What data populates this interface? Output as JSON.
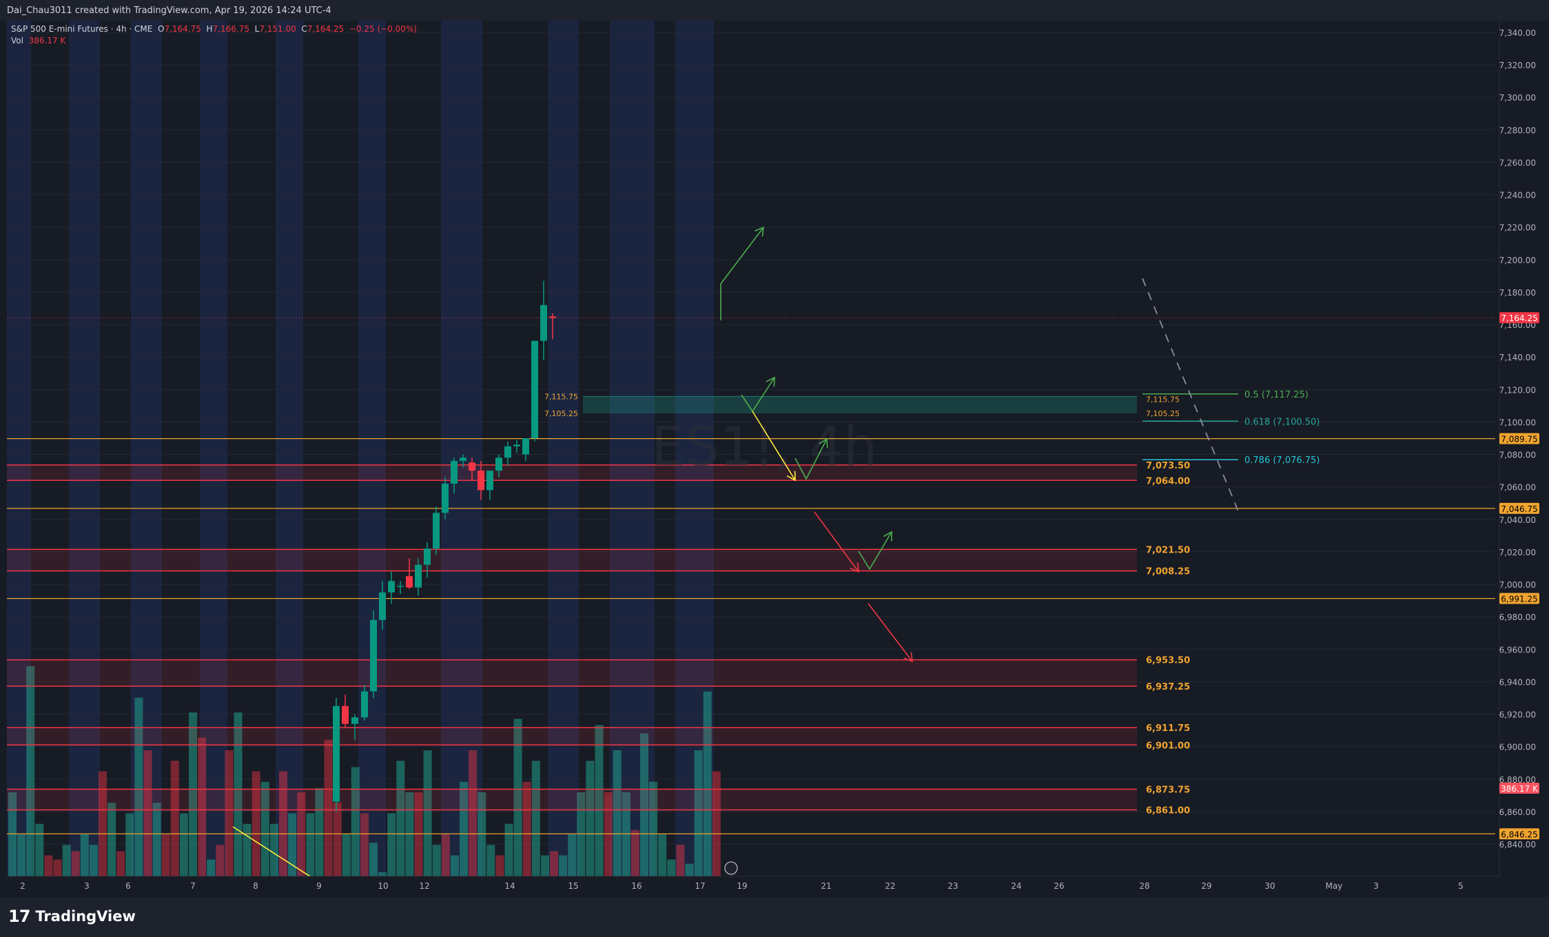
{
  "header": {
    "created": "Dai_Chau3011 created with TradingView.com, Apr 19, 2026 14:24 UTC-4"
  },
  "legend": {
    "symbol": "S&P 500 E-mini Futures · 4h · CME",
    "o_label": "O",
    "o": "7,164.75",
    "h_label": "H",
    "h": "7,166.75",
    "l_label": "L",
    "l": "7,151.00",
    "c_label": "C",
    "c": "7,164.25",
    "change": "−0.25 (−0.00%)",
    "vol_label": "Vol",
    "vol": "386.17 K"
  },
  "watermark": "ES1!, 4h",
  "footer": {
    "brand": "TradingView"
  },
  "colors": {
    "background": "#171b24",
    "session_band": "#1d2a4a",
    "up": "#089981",
    "down": "#f23645",
    "level_line": "#f0a430",
    "zone_red": "#f23645",
    "zone_green": "#22ab94",
    "fib_05": "#4caf50",
    "fib_0618": "#26a69a",
    "fib_0786": "#26c6da",
    "arrow_green": "#4caf50",
    "arrow_red": "#f23645",
    "arrow_yellow": "#ffeb3b"
  },
  "chart_data": {
    "type": "candlestick",
    "y_axis_labels": [
      "7,340.00",
      "7,320.00",
      "7,300.00",
      "7,280.00",
      "7,260.00",
      "7,240.00",
      "7,220.00",
      "7,200.00",
      "7,180.00",
      "7,160.00",
      "7,140.00",
      "7,120.00",
      "7,100.00",
      "7,080.00",
      "7,060.00",
      "7,040.00",
      "7,020.00",
      "7,000.00",
      "6,980.00",
      "6,960.00",
      "6,940.00",
      "6,920.00",
      "6,900.00",
      "6,880.00",
      "6,860.00",
      "6,840.00"
    ],
    "ylim": [
      6836,
      7344
    ],
    "x_axis_labels": [
      "2",
      "3",
      "6",
      "7",
      "8",
      "9",
      "10",
      "12",
      "14",
      "15",
      "16",
      "17",
      "19",
      "21",
      "22",
      "23",
      "24",
      "26",
      "28",
      "29",
      "30",
      "May",
      "3",
      "5"
    ],
    "last_price": "7,164.25",
    "volume_label": "386.17 K",
    "candles": [
      [
        6866,
        6930,
        6860,
        6925
      ],
      [
        6925,
        6932,
        6912,
        6914
      ],
      [
        6914,
        6920,
        6904,
        6918
      ],
      [
        6918,
        6938,
        6916,
        6934
      ],
      [
        6934,
        6984,
        6930,
        6978
      ],
      [
        6978,
        7002,
        6972,
        6995
      ],
      [
        6995,
        7008,
        6988,
        7002
      ],
      [
        6999,
        7002,
        6994,
        6999
      ],
      [
        7005,
        7016,
        6997,
        6998
      ],
      [
        6998,
        7016,
        6993,
        7012
      ],
      [
        7012,
        7026,
        7004,
        7022
      ],
      [
        7022,
        7048,
        7018,
        7044
      ],
      [
        7044,
        7066,
        7040,
        7062
      ],
      [
        7062,
        7078,
        7056,
        7076
      ],
      [
        7076,
        7080,
        7072,
        7078
      ],
      [
        7075,
        7078,
        7064,
        7070
      ],
      [
        7070,
        7076,
        7052,
        7058
      ],
      [
        7058,
        7070,
        7052,
        7070
      ],
      [
        7070,
        7080,
        7066,
        7078
      ],
      [
        7078,
        7088,
        7073,
        7085
      ],
      [
        7085,
        7089,
        7081,
        7086
      ],
      [
        7080,
        7090,
        7076,
        7090
      ],
      [
        7090,
        7150,
        7088,
        7150
      ],
      [
        7150,
        7187,
        7138,
        7172
      ],
      [
        7165,
        7167,
        7151,
        7164
      ]
    ],
    "candle_x": [
      483,
      496,
      510,
      524,
      537,
      550,
      563,
      576,
      589,
      602,
      615,
      628,
      641,
      654,
      667,
      680,
      693,
      706,
      719,
      732,
      745,
      758,
      771,
      784,
      797
    ],
    "volumes": [
      {
        "v": 0.4,
        "d": 0
      },
      {
        "v": 0.2,
        "d": 0
      },
      {
        "v": 1.0,
        "d": 0
      },
      {
        "v": 0.25,
        "d": 0
      },
      {
        "v": 0.1,
        "d": 1
      },
      {
        "v": 0.08,
        "d": 1
      },
      {
        "v": 0.15,
        "d": 0
      },
      {
        "v": 0.12,
        "d": 1
      },
      {
        "v": 0.2,
        "d": 0
      },
      {
        "v": 0.15,
        "d": 0
      },
      {
        "v": 0.5,
        "d": 1
      },
      {
        "v": 0.35,
        "d": 0
      },
      {
        "v": 0.12,
        "d": 1
      },
      {
        "v": 0.3,
        "d": 0
      },
      {
        "v": 0.85,
        "d": 0
      },
      {
        "v": 0.6,
        "d": 1
      },
      {
        "v": 0.35,
        "d": 0
      },
      {
        "v": 0.2,
        "d": 1
      },
      {
        "v": 0.55,
        "d": 1
      },
      {
        "v": 0.3,
        "d": 0
      },
      {
        "v": 0.78,
        "d": 0
      },
      {
        "v": 0.66,
        "d": 1
      },
      {
        "v": 0.08,
        "d": 0
      },
      {
        "v": 0.15,
        "d": 1
      },
      {
        "v": 0.6,
        "d": 1
      },
      {
        "v": 0.78,
        "d": 0
      },
      {
        "v": 0.25,
        "d": 0
      },
      {
        "v": 0.5,
        "d": 1
      },
      {
        "v": 0.45,
        "d": 0
      },
      {
        "v": 0.25,
        "d": 0
      },
      {
        "v": 0.5,
        "d": 1
      },
      {
        "v": 0.3,
        "d": 0
      },
      {
        "v": 0.4,
        "d": 1
      },
      {
        "v": 0.3,
        "d": 0
      },
      {
        "v": 0.42,
        "d": 0
      },
      {
        "v": 0.65,
        "d": 1
      },
      {
        "v": 0.35,
        "d": 1
      },
      {
        "v": 0.2,
        "d": 0
      },
      {
        "v": 0.52,
        "d": 0
      },
      {
        "v": 0.3,
        "d": 1
      },
      {
        "v": 0.16,
        "d": 0
      },
      {
        "v": 0.02,
        "d": 0
      },
      {
        "v": 0.3,
        "d": 0
      },
      {
        "v": 0.55,
        "d": 0
      },
      {
        "v": 0.4,
        "d": 0
      },
      {
        "v": 0.4,
        "d": 1
      },
      {
        "v": 0.6,
        "d": 0
      },
      {
        "v": 0.15,
        "d": 0
      },
      {
        "v": 0.2,
        "d": 1
      },
      {
        "v": 0.1,
        "d": 0
      },
      {
        "v": 0.45,
        "d": 0
      },
      {
        "v": 0.6,
        "d": 1
      },
      {
        "v": 0.4,
        "d": 0
      },
      {
        "v": 0.15,
        "d": 0
      },
      {
        "v": 0.1,
        "d": 1
      },
      {
        "v": 0.25,
        "d": 0
      },
      {
        "v": 0.75,
        "d": 0
      },
      {
        "v": 0.45,
        "d": 1
      },
      {
        "v": 0.55,
        "d": 0
      },
      {
        "v": 0.1,
        "d": 0
      },
      {
        "v": 0.12,
        "d": 1
      },
      {
        "v": 0.1,
        "d": 0
      },
      {
        "v": 0.2,
        "d": 0
      },
      {
        "v": 0.4,
        "d": 0
      },
      {
        "v": 0.55,
        "d": 0
      },
      {
        "v": 0.72,
        "d": 0
      },
      {
        "v": 0.4,
        "d": 1
      },
      {
        "v": 0.6,
        "d": 0
      },
      {
        "v": 0.4,
        "d": 0
      },
      {
        "v": 0.22,
        "d": 1
      },
      {
        "v": 0.68,
        "d": 0
      },
      {
        "v": 0.45,
        "d": 0
      },
      {
        "v": 0.2,
        "d": 0
      },
      {
        "v": 0.08,
        "d": 0
      },
      {
        "v": 0.15,
        "d": 1
      },
      {
        "v": 0.06,
        "d": 0
      },
      {
        "v": 0.6,
        "d": 0
      },
      {
        "v": 0.88,
        "d": 0
      },
      {
        "v": 0.5,
        "d": 1
      }
    ],
    "levels": [
      {
        "price": 7089.75,
        "label": "7,089.75"
      },
      {
        "price": 7046.75,
        "label": "7,046.75"
      },
      {
        "price": 6991.25,
        "label": "6,991.25"
      },
      {
        "price": 6846.25,
        "label": "6,846.25"
      }
    ],
    "red_zones": [
      {
        "top": 7073.5,
        "bottom": 7064.0,
        "top_label": "7,073.50",
        "bottom_label": "7,064.00"
      },
      {
        "top": 7021.5,
        "bottom": 7008.25,
        "top_label": "7,021.50",
        "bottom_label": "7,008.25"
      },
      {
        "top": 6953.5,
        "bottom": 6937.25,
        "top_label": "6,953.50",
        "bottom_label": "6,937.25"
      },
      {
        "top": 6911.75,
        "bottom": 6901.0,
        "top_label": "6,911.75",
        "bottom_label": "6,901.00"
      },
      {
        "top": 6873.75,
        "bottom": 6861.0,
        "top_label": "6,873.75",
        "bottom_label": "6,861.00"
      }
    ],
    "green_zone": {
      "top": 7115.75,
      "bottom": 7105.25,
      "top_label": "7,115.75",
      "bottom_label": "7,105.25"
    },
    "fib": [
      {
        "price": 7117.25,
        "label": "0.5 (7,117.25)"
      },
      {
        "price": 7100.5,
        "label": "0.618 (7,100.50)"
      },
      {
        "price": 7076.75,
        "label": "0.786 (7,076.75)"
      }
    ]
  }
}
